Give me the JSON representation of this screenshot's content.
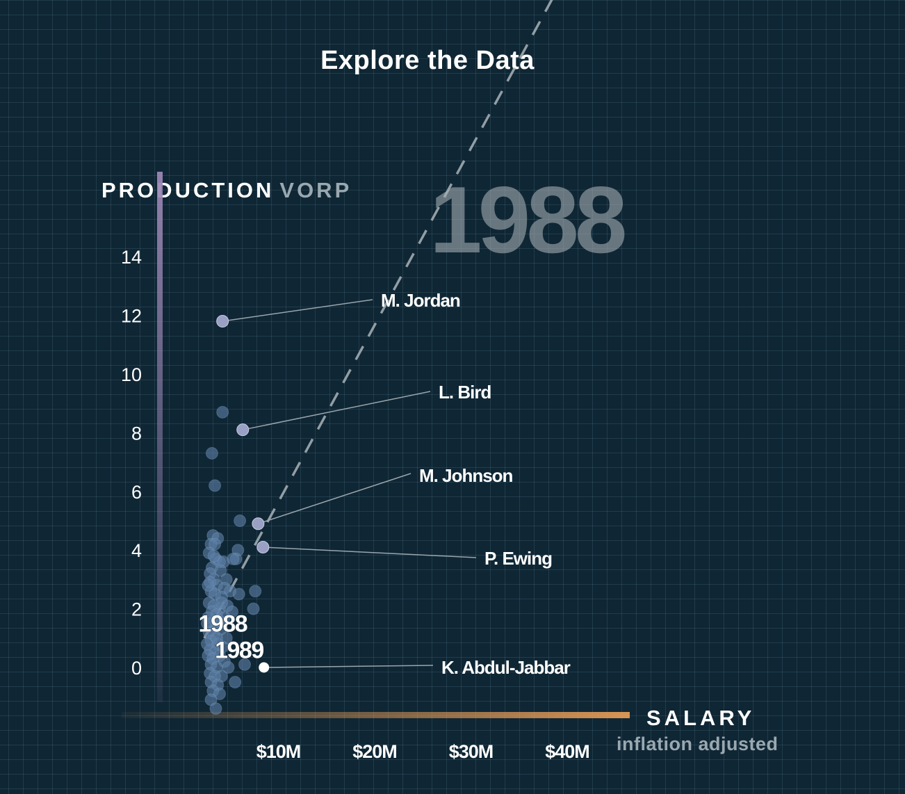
{
  "header": {
    "title": "Explore the Data"
  },
  "year_display": "1988",
  "y_axis": {
    "title": "PRODUCTION",
    "unit": "VORP"
  },
  "x_axis": {
    "title": "SALARY",
    "subtitle": "inflation adjusted"
  },
  "colors": {
    "background": "#0f2634",
    "point": "#5e7fa6",
    "labeled_point": "#9a9fc4",
    "highlight": "#ffffff",
    "y_axis_bar": "#9a86b4",
    "x_axis_bar": "#e39a55"
  },
  "chart_data": {
    "type": "scatter",
    "title": "Explore the Data",
    "xlabel": "SALARY",
    "ylabel": "PRODUCTION VORP",
    "xlim": [
      0,
      45
    ],
    "ylim": [
      -1.5,
      15
    ],
    "x_ticks": [
      {
        "value": 10,
        "label": "$10M"
      },
      {
        "value": 20,
        "label": "$20M"
      },
      {
        "value": 30,
        "label": "$30M"
      },
      {
        "value": 40,
        "label": "$40M"
      }
    ],
    "y_ticks": [
      {
        "value": 0,
        "label": "0"
      },
      {
        "value": 2,
        "label": "2"
      },
      {
        "value": 4,
        "label": "4"
      },
      {
        "value": 6,
        "label": "6"
      },
      {
        "value": 8,
        "label": "8"
      },
      {
        "value": 10,
        "label": "10"
      },
      {
        "value": 12,
        "label": "12"
      },
      {
        "value": 14,
        "label": "14"
      }
    ],
    "grid": true,
    "reference_line": {
      "style": "dashed",
      "points": [
        [
          2.3,
          1.0
        ],
        [
          39.3,
          23.3
        ]
      ]
    },
    "labeled_points": [
      {
        "name": "M. Jordan",
        "x": 4.2,
        "y": 11.8
      },
      {
        "name": "L. Bird",
        "x": 6.3,
        "y": 8.1
      },
      {
        "name": "M. Johnson",
        "x": 7.9,
        "y": 4.9
      },
      {
        "name": "P. Ewing",
        "x": 8.4,
        "y": 4.1
      },
      {
        "name": "K. Abdul-Jabbar",
        "x": 8.5,
        "y": 0.0
      }
    ],
    "path_labels": [
      {
        "label": "1988",
        "x": 4.3,
        "y": 1.5
      },
      {
        "label": "1989",
        "x": 6.0,
        "y": 0.6
      }
    ],
    "series": [
      {
        "points": [
          [
            4.2,
            8.7
          ],
          [
            3.1,
            7.3
          ],
          [
            3.4,
            6.2
          ],
          [
            6.0,
            5.0
          ],
          [
            5.8,
            4.0
          ],
          [
            3.2,
            4.5
          ],
          [
            3.7,
            4.4
          ],
          [
            3.0,
            4.2
          ],
          [
            3.4,
            4.2
          ],
          [
            2.8,
            3.9
          ],
          [
            3.5,
            3.7
          ],
          [
            3.9,
            3.6
          ],
          [
            4.3,
            3.6
          ],
          [
            5.6,
            3.7
          ],
          [
            5.3,
            3.7
          ],
          [
            3.1,
            3.4
          ],
          [
            2.9,
            3.2
          ],
          [
            4.0,
            3.3
          ],
          [
            4.6,
            3.0
          ],
          [
            3.3,
            3.0
          ],
          [
            2.9,
            2.9
          ],
          [
            3.6,
            2.8
          ],
          [
            4.4,
            2.7
          ],
          [
            5.0,
            2.6
          ],
          [
            3.0,
            2.6
          ],
          [
            3.4,
            2.5
          ],
          [
            4.1,
            2.4
          ],
          [
            5.9,
            2.5
          ],
          [
            7.6,
            2.6
          ],
          [
            2.8,
            2.2
          ],
          [
            3.3,
            2.1
          ],
          [
            3.9,
            2.0
          ],
          [
            4.7,
            2.1
          ],
          [
            3.1,
            1.9
          ],
          [
            3.6,
            1.8
          ],
          [
            2.7,
            1.7
          ],
          [
            4.4,
            1.7
          ],
          [
            3.0,
            1.5
          ],
          [
            3.5,
            1.4
          ],
          [
            4.0,
            1.3
          ],
          [
            2.8,
            1.2
          ],
          [
            3.3,
            1.1
          ],
          [
            4.6,
            1.0
          ],
          [
            3.0,
            0.9
          ],
          [
            3.7,
            0.8
          ],
          [
            4.2,
            0.7
          ],
          [
            2.9,
            0.6
          ],
          [
            3.4,
            0.5
          ],
          [
            3.9,
            0.4
          ],
          [
            2.7,
            0.4
          ],
          [
            3.2,
            0.3
          ],
          [
            4.4,
            0.2
          ],
          [
            3.0,
            0.1
          ],
          [
            3.6,
            0.0
          ],
          [
            4.8,
            0.0
          ],
          [
            2.9,
            -0.2
          ],
          [
            3.4,
            -0.3
          ],
          [
            4.1,
            -0.3
          ],
          [
            3.0,
            -0.5
          ],
          [
            3.7,
            -0.6
          ],
          [
            5.5,
            -0.5
          ],
          [
            3.2,
            -0.8
          ],
          [
            3.9,
            -0.9
          ],
          [
            3.0,
            -1.1
          ],
          [
            3.5,
            -1.4
          ],
          [
            2.6,
            0.8
          ],
          [
            2.6,
            1.5
          ],
          [
            2.7,
            2.8
          ],
          [
            3.8,
            1.6
          ],
          [
            5.2,
            1.9
          ],
          [
            6.5,
            0.1
          ],
          [
            7.4,
            2.0
          ],
          [
            3.3,
            3.8
          ],
          [
            4.1,
            2.2
          ],
          [
            3.6,
            1.0
          ]
        ]
      }
    ]
  }
}
